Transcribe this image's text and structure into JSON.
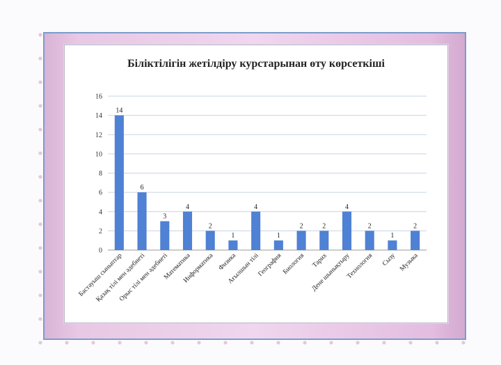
{
  "chart_data": {
    "type": "bar",
    "title": "Біліктілігін жетілдіру курстарынан өту көрсеткіші",
    "categories": [
      "Бастауыш сыныптар",
      "Қазақ тілі мен әдебиеті",
      "Орыс тілі мен әдебиеті",
      "Математика",
      "Информатика",
      "Физика",
      "Ағылшын тілі",
      "География",
      "Биология",
      "Тарих",
      "Дене шынықтыру",
      "Технология",
      "Сызу",
      "Музыка"
    ],
    "values": [
      14,
      6,
      3,
      4,
      2,
      1,
      4,
      1,
      2,
      2,
      4,
      2,
      1,
      2
    ],
    "ylim": [
      0,
      16
    ],
    "yticks": [
      0,
      2,
      4,
      6,
      8,
      10,
      12,
      14,
      16
    ],
    "grid": true,
    "bar_color": "#4f81d4"
  }
}
